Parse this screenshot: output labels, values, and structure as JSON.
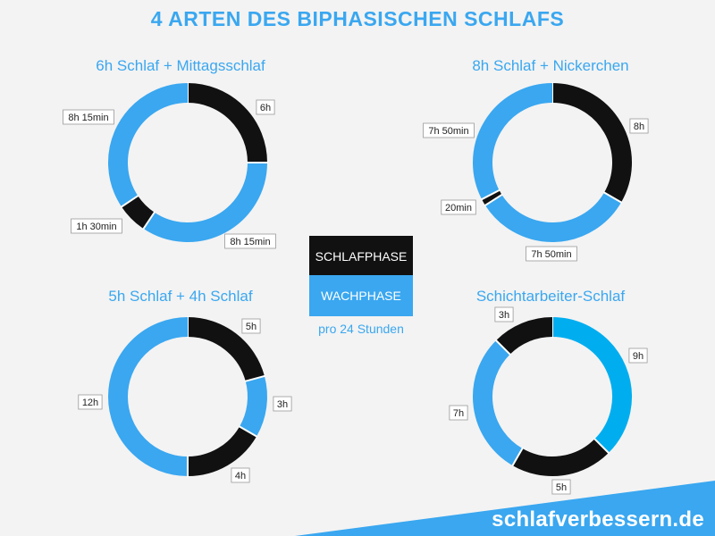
{
  "title": "4 ARTEN DES BIPHASISCHEN SCHLAFS",
  "colors": {
    "sleep": "#111111",
    "wake": "#3aa7f0",
    "wake_alt": "#00aeef",
    "accent": "#3aa7f0",
    "background": "#f3f3f3"
  },
  "legend": {
    "sleep_label": "SCHLAFPHASE",
    "wake_label": "WACHPHASE",
    "note": "pro 24 Stunden"
  },
  "footer": {
    "brand": "schlafverbessern.de"
  },
  "chart_data": [
    {
      "type": "pie",
      "title": "6h Schlaf + Mittagsschlaf",
      "unit": "Stunden",
      "slices": [
        {
          "label": "6h",
          "value": 6,
          "phase": "sleep"
        },
        {
          "label": "8h 15min",
          "value": 8.25,
          "phase": "wake"
        },
        {
          "label": "1h 30min",
          "value": 1.5,
          "phase": "sleep"
        },
        {
          "label": "8h 15min",
          "value": 8.25,
          "phase": "wake"
        }
      ]
    },
    {
      "type": "pie",
      "title": "8h Schlaf + Nickerchen",
      "unit": "Stunden",
      "slices": [
        {
          "label": "8h",
          "value": 8,
          "phase": "sleep"
        },
        {
          "label": "7h 50min",
          "value": 7.8333,
          "phase": "wake"
        },
        {
          "label": "20min",
          "value": 0.3333,
          "phase": "sleep"
        },
        {
          "label": "7h 50min",
          "value": 7.8333,
          "phase": "wake"
        }
      ]
    },
    {
      "type": "pie",
      "title": "5h Schlaf + 4h Schlaf",
      "unit": "Stunden",
      "slices": [
        {
          "label": "5h",
          "value": 5,
          "phase": "sleep"
        },
        {
          "label": "3h",
          "value": 3,
          "phase": "wake"
        },
        {
          "label": "4h",
          "value": 4,
          "phase": "sleep"
        },
        {
          "label": "12h",
          "value": 12,
          "phase": "wake"
        }
      ]
    },
    {
      "type": "pie",
      "title": "Schichtarbeiter-Schlaf",
      "unit": "Stunden",
      "slices": [
        {
          "label": "9h",
          "value": 9,
          "phase": "wake_alt"
        },
        {
          "label": "5h",
          "value": 5,
          "phase": "sleep"
        },
        {
          "label": "7h",
          "value": 7,
          "phase": "wake"
        },
        {
          "label": "3h",
          "value": 3,
          "phase": "sleep"
        }
      ]
    }
  ]
}
